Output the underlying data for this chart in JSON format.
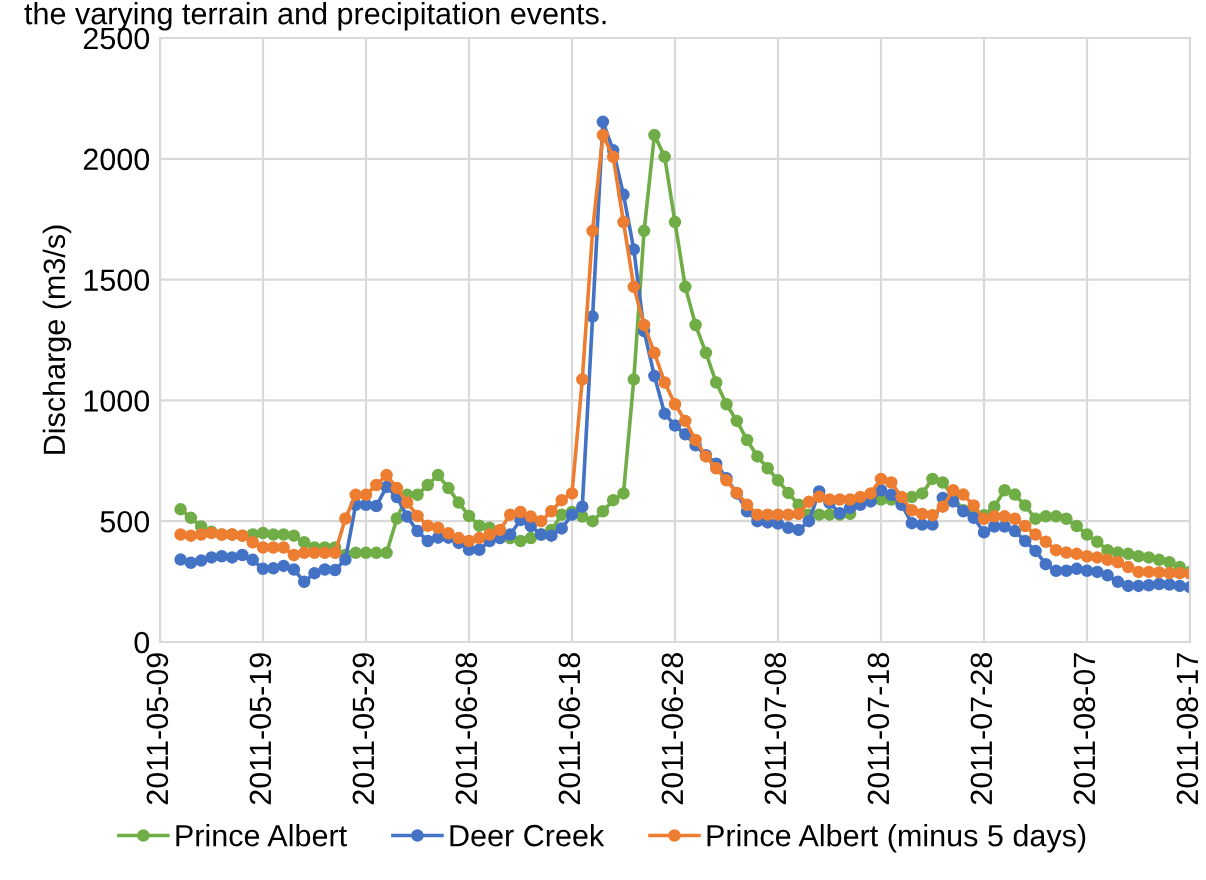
{
  "chart_data": {
    "type": "line",
    "annotations": [
      "the varying terrain and precipitation events."
    ],
    "ylabel": "Discharge (m3/s)",
    "x": [
      "2011-05-11",
      "2011-05-12",
      "2011-05-13",
      "2011-05-14",
      "2011-05-15",
      "2011-05-16",
      "2011-05-17",
      "2011-05-18",
      "2011-05-19",
      "2011-05-20",
      "2011-05-21",
      "2011-05-22",
      "2011-05-23",
      "2011-05-24",
      "2011-05-25",
      "2011-05-26",
      "2011-05-27",
      "2011-05-28",
      "2011-05-29",
      "2011-05-30",
      "2011-05-31",
      "2011-06-01",
      "2011-06-02",
      "2011-06-03",
      "2011-06-04",
      "2011-06-05",
      "2011-06-06",
      "2011-06-07",
      "2011-06-08",
      "2011-06-09",
      "2011-06-10",
      "2011-06-11",
      "2011-06-12",
      "2011-06-13",
      "2011-06-14",
      "2011-06-15",
      "2011-06-16",
      "2011-06-17",
      "2011-06-18",
      "2011-06-19",
      "2011-06-20",
      "2011-06-21",
      "2011-06-22",
      "2011-06-23",
      "2011-06-24",
      "2011-06-25",
      "2011-06-26",
      "2011-06-27",
      "2011-06-28",
      "2011-06-29",
      "2011-06-30",
      "2011-07-01",
      "2011-07-02",
      "2011-07-03",
      "2011-07-04",
      "2011-07-05",
      "2011-07-06",
      "2011-07-07",
      "2011-07-08",
      "2011-07-09",
      "2011-07-10",
      "2011-07-11",
      "2011-07-12",
      "2011-07-13",
      "2011-07-14",
      "2011-07-15",
      "2011-07-16",
      "2011-07-17",
      "2011-07-18",
      "2011-07-19",
      "2011-07-20",
      "2011-07-21",
      "2011-07-22",
      "2011-07-23",
      "2011-07-24",
      "2011-07-25",
      "2011-07-26",
      "2011-07-27",
      "2011-07-28",
      "2011-07-29",
      "2011-07-30",
      "2011-07-31",
      "2011-08-01",
      "2011-08-02",
      "2011-08-03",
      "2011-08-04",
      "2011-08-05",
      "2011-08-06",
      "2011-08-07",
      "2011-08-08",
      "2011-08-09",
      "2011-08-10",
      "2011-08-11",
      "2011-08-12",
      "2011-08-13",
      "2011-08-14",
      "2011-08-15",
      "2011-08-16",
      "2011-08-17"
    ],
    "series": [
      {
        "name": "Prince Albert",
        "color": "#70ad47",
        "values": [
          549,
          514,
          478,
          456,
          445,
          445,
          440,
          445,
          451,
          445,
          445,
          440,
          413,
          391,
          391,
          391,
          360,
          369,
          369,
          369,
          369,
          511,
          609,
          609,
          650,
          691,
          637,
          577,
          522,
          481,
          473,
          450,
          430,
          418,
          430,
          445,
          464,
          527,
          538,
          519,
          500,
          541,
          587,
          615,
          1087,
          1702,
          2098,
          2008,
          1738,
          1470,
          1312,
          1197,
          1074,
          984,
          915,
          836,
          768,
          719,
          669,
          617,
          568,
          527,
          527,
          527,
          527,
          530,
          580,
          601,
          590,
          590,
          590,
          600,
          615,
          675,
          660,
          600,
          545,
          530,
          525,
          560,
          628,
          610,
          565,
          510,
          520,
          520,
          510,
          480,
          445,
          415,
          380,
          370,
          365,
          355,
          350,
          340,
          330,
          310,
          290
        ]
      },
      {
        "name": "Deer Creek",
        "color": "#4472c4",
        "values": [
          341,
          328,
          337,
          350,
          355,
          350,
          360,
          340,
          303,
          305,
          315,
          300,
          249,
          285,
          300,
          298,
          341,
          568,
          568,
          563,
          642,
          600,
          519,
          459,
          418,
          432,
          432,
          410,
          382,
          382,
          418,
          430,
          445,
          505,
          480,
          445,
          440,
          470,
          527,
          560,
          1347,
          2153,
          2035,
          1852,
          1625,
          1287,
          1101,
          945,
          896,
          860,
          814,
          773,
          738,
          678,
          615,
          541,
          500,
          495,
          490,
          473,
          464,
          500,
          623,
          576,
          533,
          555,
          568,
          582,
          628,
          609,
          568,
          492,
          486,
          486,
          596,
          582,
          541,
          514,
          454,
          478,
          478,
          459,
          418,
          377,
          322,
          295,
          295,
          303,
          295,
          290,
          276,
          249,
          232,
          232,
          235,
          240,
          238,
          232,
          227
        ]
      },
      {
        "name": "Prince Albert (minus 5 days)",
        "color": "#ed7d31",
        "values": [
          445,
          440,
          445,
          451,
          445,
          445,
          440,
          413,
          391,
          391,
          391,
          360,
          369,
          369,
          369,
          369,
          511,
          609,
          609,
          650,
          691,
          637,
          577,
          522,
          481,
          473,
          450,
          430,
          418,
          430,
          445,
          464,
          527,
          538,
          519,
          500,
          541,
          587,
          615,
          1087,
          1702,
          2098,
          2008,
          1738,
          1470,
          1312,
          1197,
          1074,
          984,
          915,
          836,
          768,
          719,
          669,
          617,
          568,
          527,
          527,
          527,
          527,
          530,
          580,
          601,
          590,
          590,
          590,
          600,
          615,
          675,
          660,
          600,
          545,
          530,
          525,
          560,
          628,
          610,
          565,
          510,
          520,
          520,
          510,
          480,
          445,
          415,
          380,
          370,
          365,
          355,
          350,
          340,
          330,
          310,
          290,
          290,
          288,
          285,
          285,
          283
        ]
      }
    ],
    "xlim": [
      "2011-05-09",
      "2011-08-17"
    ],
    "xticks": [
      "2011-05-09",
      "2011-05-19",
      "2011-05-29",
      "2011-06-08",
      "2011-06-18",
      "2011-06-28",
      "2011-07-08",
      "2011-07-18",
      "2011-07-28",
      "2011-08-07",
      "2011-08-17"
    ],
    "ylim": [
      0,
      2500
    ],
    "yticks": [
      0,
      500,
      1000,
      1500,
      2000,
      2500
    ],
    "grid": true,
    "legend": "bottom",
    "marker": "circle",
    "line_style": "solid"
  }
}
